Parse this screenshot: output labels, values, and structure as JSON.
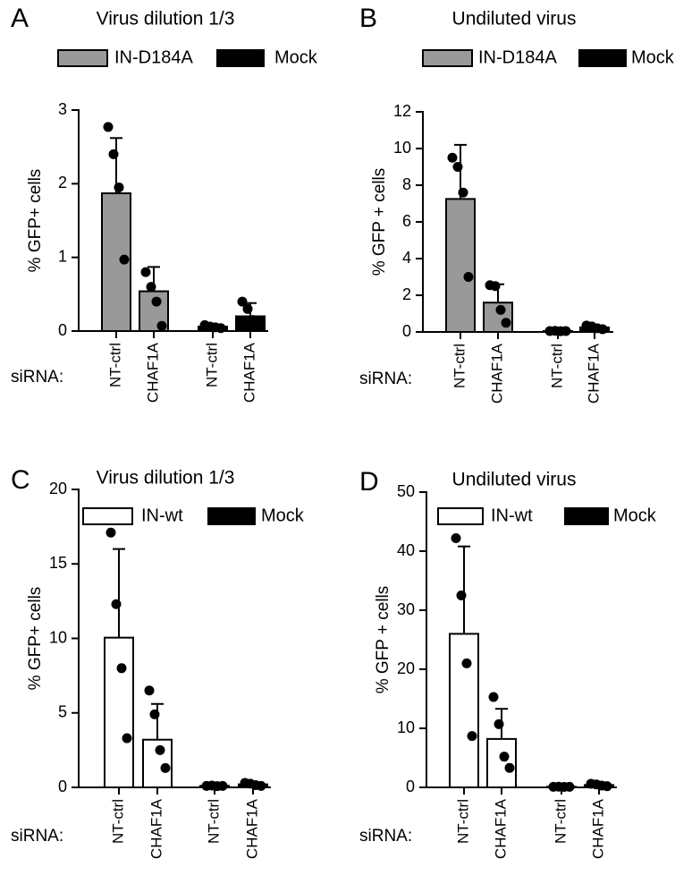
{
  "chart_data": [
    {
      "type": "bar",
      "panel": "A",
      "title": "Virus dilution 1/3",
      "ylabel": "% GFP+ cells",
      "row_label": "siRNA:",
      "categories": [
        "NT-ctrl",
        "CHAF1A",
        "NT-ctrl",
        "CHAF1A"
      ],
      "ylim": [
        0,
        3
      ],
      "yticks": [
        0,
        1,
        2,
        3
      ],
      "series": [
        {
          "name": "IN-D184A",
          "color": "#999999",
          "values": [
            1.87,
            0.54,
            null,
            null
          ],
          "errors": [
            0.75,
            0.33,
            null,
            null
          ],
          "points": [
            [
              2.77,
              2.4,
              1.95,
              0.97
            ],
            [
              0.8,
              0.6,
              0.4,
              0.07
            ],
            null,
            null
          ]
        },
        {
          "name": "Mock",
          "color": "#000000",
          "values": [
            null,
            null,
            0.06,
            0.2
          ],
          "errors": [
            null,
            null,
            0.03,
            0.18
          ],
          "points": [
            null,
            null,
            [
              0.08,
              0.06,
              0.05,
              0.04
            ],
            [
              0.4,
              0.3,
              0.15,
              0.1
            ]
          ]
        }
      ]
    },
    {
      "type": "bar",
      "panel": "B",
      "title": "Undiluted virus",
      "ylabel": "% GFP + cells",
      "row_label": "siRNA:",
      "categories": [
        "NT-ctrl",
        "CHAF1A",
        "NT-ctrl",
        "CHAF1A"
      ],
      "ylim": [
        0,
        12
      ],
      "yticks": [
        0,
        2,
        4,
        6,
        8,
        10,
        12
      ],
      "series": [
        {
          "name": "IN-D184A",
          "color": "#999999",
          "values": [
            7.25,
            1.6,
            null,
            null
          ],
          "errors": [
            2.95,
            1.0,
            null,
            null
          ],
          "points": [
            [
              9.5,
              9.0,
              7.6,
              3.0
            ],
            [
              2.55,
              2.5,
              1.2,
              0.5
            ],
            null,
            null
          ]
        },
        {
          "name": "Mock",
          "color": "#000000",
          "values": [
            null,
            null,
            0.05,
            0.25
          ],
          "errors": [
            null,
            null,
            0.02,
            0.1
          ],
          "points": [
            null,
            null,
            [
              0.05,
              0.06,
              0.04,
              0.05
            ],
            [
              0.35,
              0.3,
              0.2,
              0.15
            ]
          ]
        }
      ]
    },
    {
      "type": "bar",
      "panel": "C",
      "title": "Virus dilution 1/3",
      "ylabel": "% GFP+ cells",
      "row_label": "siRNA:",
      "categories": [
        "NT-ctrl",
        "CHAF1A",
        "NT-ctrl",
        "CHAF1A"
      ],
      "ylim": [
        0,
        20
      ],
      "yticks": [
        0,
        5,
        10,
        15,
        20
      ],
      "series": [
        {
          "name": "IN-wt",
          "color": "#ffffff",
          "values": [
            10.05,
            3.2,
            null,
            null
          ],
          "errors": [
            5.95,
            2.4,
            null,
            null
          ],
          "points": [
            [
              17.1,
              12.3,
              8.0,
              3.3
            ],
            [
              6.5,
              4.9,
              2.5,
              1.3
            ],
            null,
            null
          ]
        },
        {
          "name": "Mock",
          "color": "#000000",
          "values": [
            null,
            null,
            0.1,
            0.2
          ],
          "errors": [
            null,
            null,
            0.05,
            0.1
          ],
          "points": [
            null,
            null,
            [
              0.1,
              0.12,
              0.08,
              0.1
            ],
            [
              0.3,
              0.25,
              0.15,
              0.1
            ]
          ]
        }
      ]
    },
    {
      "type": "bar",
      "panel": "D",
      "title": "Undiluted virus",
      "ylabel": "% GFP + cells",
      "row_label": "siRNA:",
      "categories": [
        "NT-ctrl",
        "CHAF1A",
        "NT-ctrl",
        "CHAF1A"
      ],
      "ylim": [
        0,
        50
      ],
      "yticks": [
        0,
        10,
        20,
        30,
        40,
        50
      ],
      "series": [
        {
          "name": "IN-wt",
          "color": "#ffffff",
          "values": [
            26,
            8.2,
            null,
            null
          ],
          "errors": [
            14.8,
            5.1,
            null,
            null
          ],
          "points": [
            [
              42.2,
              32.5,
              21.0,
              8.7
            ],
            [
              15.3,
              10.7,
              5.2,
              3.3
            ],
            null,
            null
          ]
        },
        {
          "name": "Mock",
          "color": "#000000",
          "values": [
            null,
            null,
            0.1,
            0.4
          ],
          "errors": [
            null,
            null,
            0.05,
            0.2
          ],
          "points": [
            null,
            null,
            [
              0.1,
              0.12,
              0.08,
              0.1
            ],
            [
              0.6,
              0.5,
              0.3,
              0.2
            ]
          ]
        }
      ]
    }
  ]
}
